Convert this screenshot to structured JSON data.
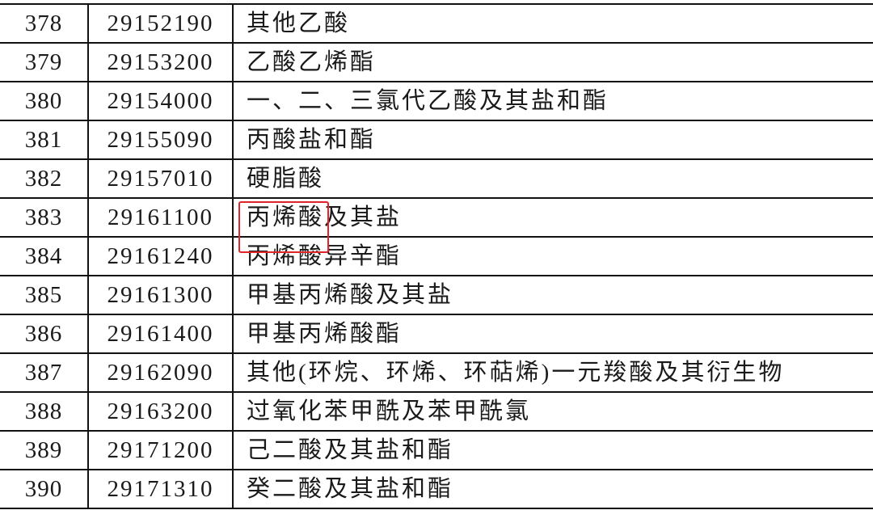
{
  "table": {
    "rows": [
      {
        "index": "378",
        "code": "29152190",
        "name": "其他乙酸"
      },
      {
        "index": "379",
        "code": "29153200",
        "name": "乙酸乙烯酯"
      },
      {
        "index": "380",
        "code": "29154000",
        "name": "一、二、三氯代乙酸及其盐和酯"
      },
      {
        "index": "381",
        "code": "29155090",
        "name": "丙酸盐和酯"
      },
      {
        "index": "382",
        "code": "29157010",
        "name": "硬脂酸"
      },
      {
        "index": "383",
        "code": "29161100",
        "name": "丙烯酸及其盐"
      },
      {
        "index": "384",
        "code": "29161240",
        "name": "丙烯酸异辛酯"
      },
      {
        "index": "385",
        "code": "29161300",
        "name": "甲基丙烯酸及其盐"
      },
      {
        "index": "386",
        "code": "29161400",
        "name": "甲基丙烯酸酯"
      },
      {
        "index": "387",
        "code": "29162090",
        "name": "其他(环烷、环烯、环萜烯)一元羧酸及其衍生物"
      },
      {
        "index": "388",
        "code": "29163200",
        "name": "过氧化苯甲酰及苯甲酰氯"
      },
      {
        "index": "389",
        "code": "29171200",
        "name": "己二酸及其盐和酯"
      },
      {
        "index": "390",
        "code": "29171310",
        "name": "癸二酸及其盐和酯"
      }
    ]
  },
  "highlight": {
    "row_index": "383",
    "text": "丙烯酸",
    "color": "#e0242a"
  }
}
